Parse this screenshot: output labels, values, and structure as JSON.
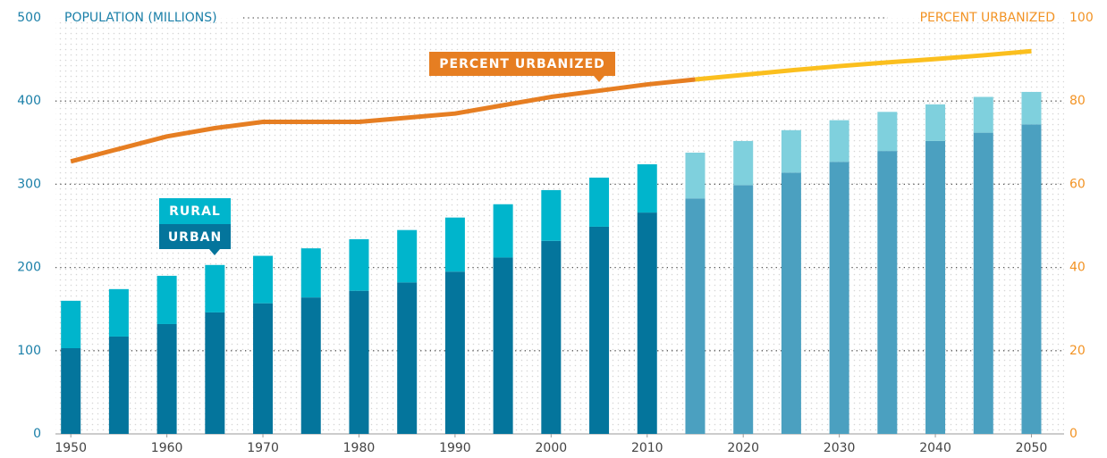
{
  "chart_data": {
    "type": "bar+line",
    "y_label": "POPULATION (MILLIONS)",
    "y2_label": "PERCENT URBANIZED",
    "x": [
      1950,
      1955,
      1960,
      1965,
      1970,
      1975,
      1980,
      1985,
      1990,
      1995,
      2000,
      2005,
      2010,
      2015,
      2020,
      2025,
      2030,
      2035,
      2040,
      2045,
      2050
    ],
    "xlim": [
      1948.4,
      2053.4
    ],
    "xticks": [
      1950,
      1960,
      1970,
      1980,
      1990,
      2000,
      2010,
      2020,
      2030,
      2040,
      2050
    ],
    "ylim": [
      0,
      500
    ],
    "yticks": [
      0,
      100,
      200,
      300,
      400,
      500
    ],
    "y2lim": [
      0,
      100
    ],
    "y2ticks": [
      0,
      20,
      40,
      60,
      80,
      100
    ],
    "grid": true,
    "projected_from": 2015,
    "series": [
      {
        "name": "URBAN",
        "type": "bar",
        "color": "#04759c",
        "projected_color": "#4ba0c0",
        "values": [
          103,
          117,
          132,
          146,
          157,
          164,
          172,
          182,
          195,
          212,
          232,
          249,
          266,
          283,
          299,
          314,
          327,
          340,
          352,
          362,
          372
        ]
      },
      {
        "name": "RURAL",
        "type": "bar",
        "color": "#00b5cc",
        "projected_color": "#7fd0dd",
        "values": [
          57,
          57,
          58,
          57,
          57,
          59,
          62,
          63,
          65,
          64,
          61,
          59,
          58,
          55,
          53,
          51,
          50,
          47,
          44,
          43,
          39
        ]
      },
      {
        "name": "PERCENT URBANIZED",
        "type": "line",
        "axis": "y2",
        "color": "#e67e22",
        "projected_color": "#fbbf1e",
        "values": [
          65.5,
          68.5,
          71.5,
          73.5,
          75,
          75,
          75,
          76,
          77,
          79,
          81,
          82.5,
          84,
          85.2,
          86.3,
          87.4,
          88.4,
          89.3,
          90.1,
          91,
          92
        ]
      }
    ]
  }
}
